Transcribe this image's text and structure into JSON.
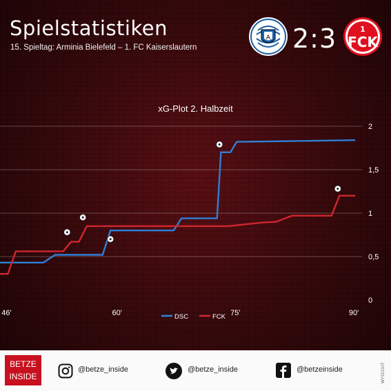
{
  "header": {
    "title": "Spielstatistiken",
    "subtitle": "15. Spieltag: Arminia Bielefeld – 1. FC Kaiserslautern",
    "score": "2:3",
    "home_logo_icon": "arminia-bielefeld-crest",
    "away_logo_icon": "fck-crest"
  },
  "chart_data": {
    "type": "line",
    "title": "xG-Plot 2. Halbzeit",
    "xlabel": "",
    "ylabel": "",
    "xlim": [
      45,
      90
    ],
    "ylim": [
      0,
      2
    ],
    "x_ticks": [
      46,
      60,
      75,
      90
    ],
    "x_tick_labels": [
      "46'",
      "60'",
      "75'",
      "90'"
    ],
    "y_ticks": [
      0,
      0.5,
      1,
      1.5,
      2
    ],
    "y_tick_labels": [
      "0",
      "0,5",
      "1",
      "1,5",
      "2"
    ],
    "grid": "horizontal",
    "legend_position": "bottom-center",
    "series": [
      {
        "name": "DSC",
        "color": "#2f7fd6",
        "x": [
          45,
          50.5,
          52,
          58,
          59,
          67,
          68,
          72.5,
          73,
          74.2,
          75,
          90
        ],
        "y": [
          0.43,
          0.43,
          0.52,
          0.52,
          0.8,
          0.8,
          0.94,
          0.94,
          1.7,
          1.7,
          1.82,
          1.84
        ],
        "goals": [
          {
            "x": 59,
            "y": 0.7
          },
          {
            "x": 72.8,
            "y": 1.79
          }
        ]
      },
      {
        "name": "FCK",
        "color": "#d0262f",
        "x": [
          45,
          46,
          47,
          53,
          54,
          55,
          56,
          60,
          74,
          76,
          78,
          80,
          82,
          85,
          87,
          88,
          90
        ],
        "y": [
          0.3,
          0.3,
          0.56,
          0.56,
          0.67,
          0.67,
          0.85,
          0.85,
          0.85,
          0.87,
          0.89,
          0.9,
          0.97,
          0.97,
          0.97,
          1.2,
          1.2
        ],
        "goals": [
          {
            "x": 53.5,
            "y": 0.78
          },
          {
            "x": 55.5,
            "y": 0.95
          },
          {
            "x": 87.8,
            "y": 1.28
          }
        ]
      }
    ]
  },
  "footer": {
    "badge_line1": "BETZE",
    "badge_line2": "INSIDE",
    "instagram": "@betze_inside",
    "twitter": "@betze_inside",
    "facebook": "@betzeinside",
    "credit": "WYSCOUT"
  }
}
